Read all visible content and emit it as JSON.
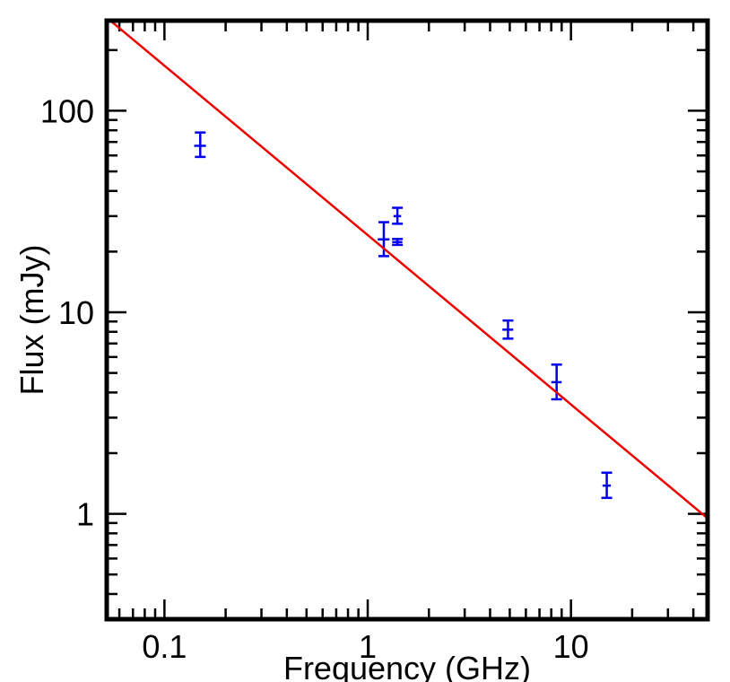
{
  "chart_data": {
    "type": "scatter",
    "title": "",
    "xlabel": "Frequency (GHz)",
    "ylabel": "Flux (mJy)",
    "xscale": "log",
    "yscale": "log",
    "xlim": [
      0.052,
      47
    ],
    "ylim": [
      0.3,
      280
    ],
    "x_tick_labels": [
      {
        "value": 0.1,
        "label": "0.1"
      },
      {
        "value": 1,
        "label": "1"
      },
      {
        "value": 10,
        "label": "10"
      }
    ],
    "y_tick_labels": [
      {
        "value": 1,
        "label": "1"
      },
      {
        "value": 10,
        "label": "10"
      },
      {
        "value": 100,
        "label": "100"
      }
    ],
    "grid": false,
    "legend": "none",
    "series": [
      {
        "kind": "errorbar",
        "color": "#0000ee",
        "points": [
          {
            "x": 0.15,
            "y": 67,
            "xerr": 0.01,
            "yerr": [
              8,
              11
            ]
          },
          {
            "x": 1.2,
            "y": 23,
            "xerr": 0.08,
            "yerr": [
              4,
              5
            ]
          },
          {
            "x": 1.4,
            "y": 30,
            "xerr": 0.06,
            "yerr": [
              2.5,
              3
            ]
          },
          {
            "x": 1.4,
            "y": 22.3,
            "xerr": 0.08,
            "yerr": [
              0.7,
              0.8
            ]
          },
          {
            "x": 4.9,
            "y": 8.2,
            "xerr": 0.3,
            "yerr": [
              0.8,
              0.9
            ]
          },
          {
            "x": 8.5,
            "y": 4.5,
            "xerr": 0.5,
            "yerr": [
              0.8,
              1.0
            ]
          },
          {
            "x": 15,
            "y": 1.38,
            "xerr": 0.7,
            "yerr": [
              0.18,
              0.22
            ]
          }
        ]
      },
      {
        "kind": "line",
        "color": "#ee0000",
        "x": [
          0.052,
          47
        ],
        "y": [
          290,
          0.95
        ]
      }
    ]
  }
}
